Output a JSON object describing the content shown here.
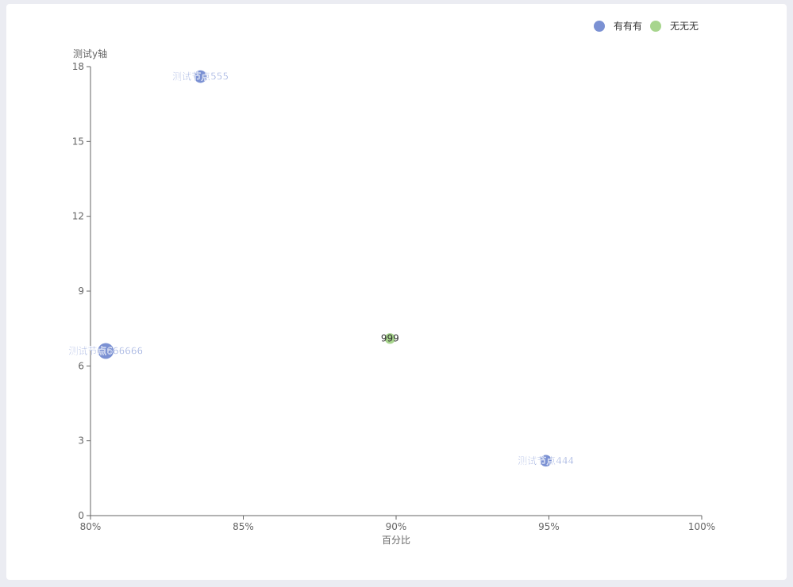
{
  "chart_data": {
    "type": "scatter",
    "xlabel": "百分比",
    "ylabel": "测试y轴",
    "xlim": [
      0.8,
      1.0
    ],
    "ylim": [
      0,
      18
    ],
    "x_ticks": [
      0.8,
      0.85,
      0.9,
      0.95,
      1.0
    ],
    "x_tick_labels": [
      "80%",
      "85%",
      "90%",
      "95%",
      "100%"
    ],
    "y_ticks": [
      0,
      3,
      6,
      9,
      12,
      15,
      18
    ],
    "y_tick_labels": [
      "0",
      "3",
      "6",
      "9",
      "12",
      "15",
      "18"
    ],
    "grid": false,
    "legend_position": "top-right",
    "series": [
      {
        "name": "有有有",
        "color": "#7b91d3",
        "points": [
          {
            "x": 0.836,
            "y": 17.6,
            "size": 3,
            "label": "测试节点555"
          },
          {
            "x": 0.805,
            "y": 6.6,
            "size": 5,
            "label": "测试节点666666"
          },
          {
            "x": 0.949,
            "y": 2.2,
            "size": 2.5,
            "label": "测试节点444"
          }
        ]
      },
      {
        "name": "无无无",
        "color": "#a7d58d",
        "points": [
          {
            "x": 0.898,
            "y": 7.1,
            "size": 2,
            "label": "999"
          }
        ]
      }
    ]
  }
}
